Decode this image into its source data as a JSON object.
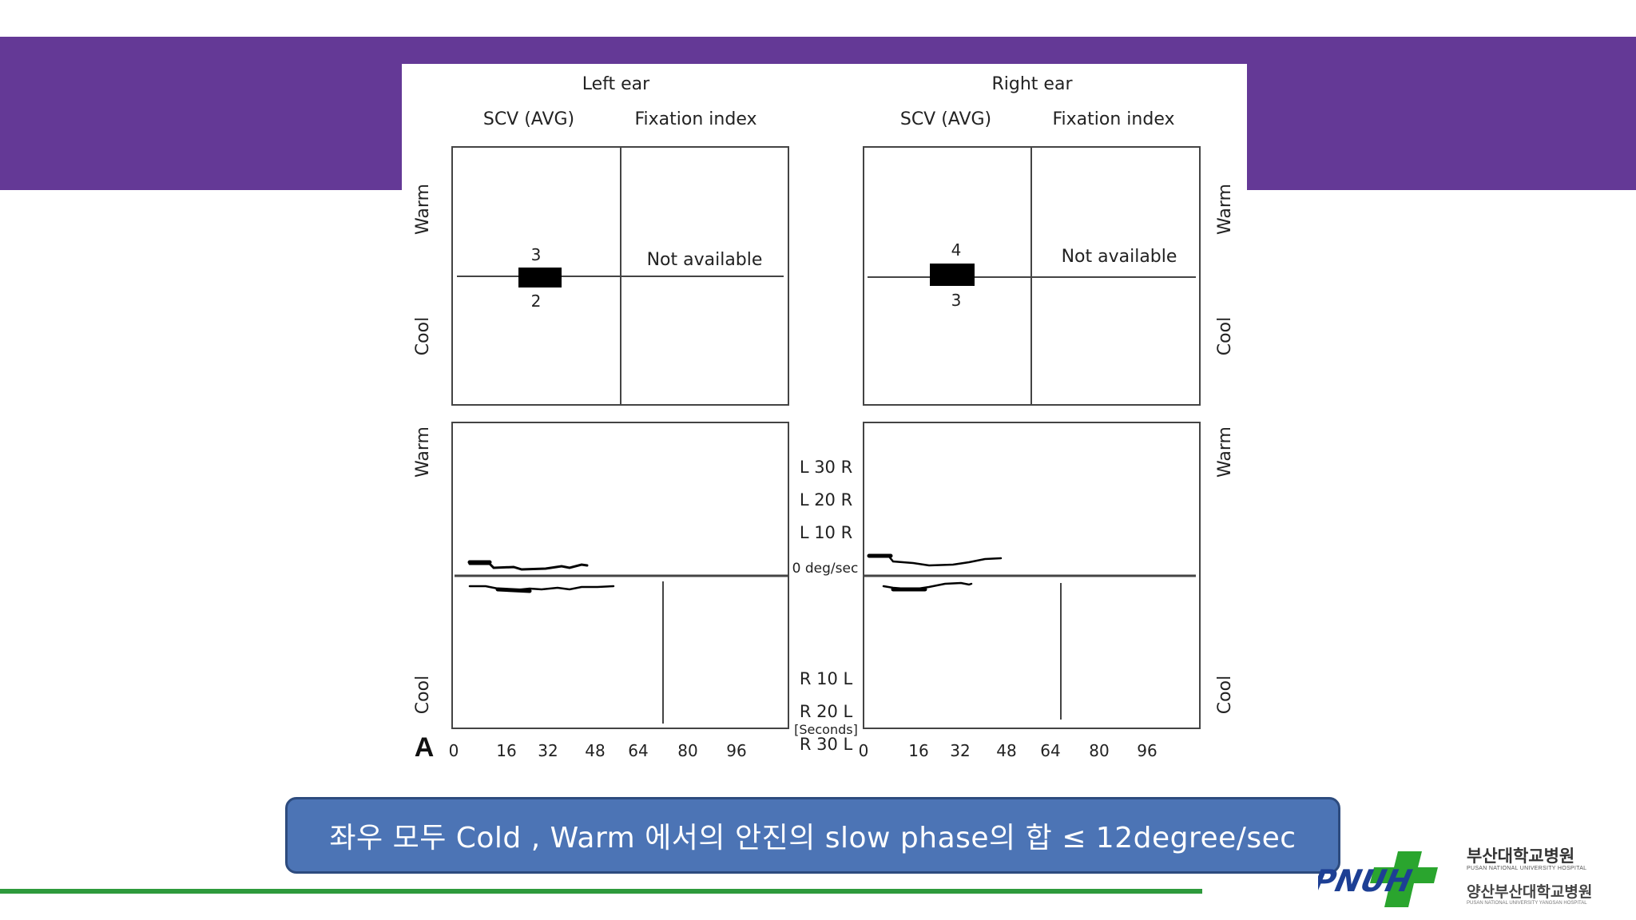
{
  "figure": {
    "left_panel": {
      "ear_title": "Left ear",
      "col1": "SCV (AVG)",
      "col2": "Fixation index",
      "upper_value": "3",
      "lower_value": "2",
      "fixation_text": "Not available"
    },
    "right_panel": {
      "ear_title": "Right ear",
      "col1": "SCV (AVG)",
      "col2": "Fixation index",
      "upper_value": "4",
      "lower_value": "3",
      "fixation_text": "Not available"
    },
    "side_labels": {
      "warm": "Warm",
      "cool": "Cool"
    },
    "center_axis": [
      "L 30 R",
      "L 20 R",
      "L 10 R",
      "0 deg/sec",
      "R 10 L",
      "R 20 L",
      "R 30 L"
    ],
    "seconds_label": "[Seconds]",
    "panel_letter": "A",
    "x_ticks": [
      "0",
      "16",
      "32",
      "48",
      "64",
      "80",
      "96"
    ]
  },
  "caption": "좌우 모두 Cold , Warm 에서의 안진의 slow phase의 합 ≤ 12degree/sec",
  "logo": {
    "mark_text": "PNUH",
    "name1": "부산대학교병원",
    "sub1": "PUSAN NATIONAL UNIVERSITY HOSPITAL",
    "name2": "양산부산대학교병원",
    "sub2": "PUSAN NATIONAL UNIVERSITY YANGSAN HOSPITAL"
  },
  "colors": {
    "band": "#643996",
    "caption_bg": "#4c74b5",
    "line": "#2e9a3c",
    "logo_green": "#2aa52e",
    "logo_blue": "#1d3f94"
  }
}
